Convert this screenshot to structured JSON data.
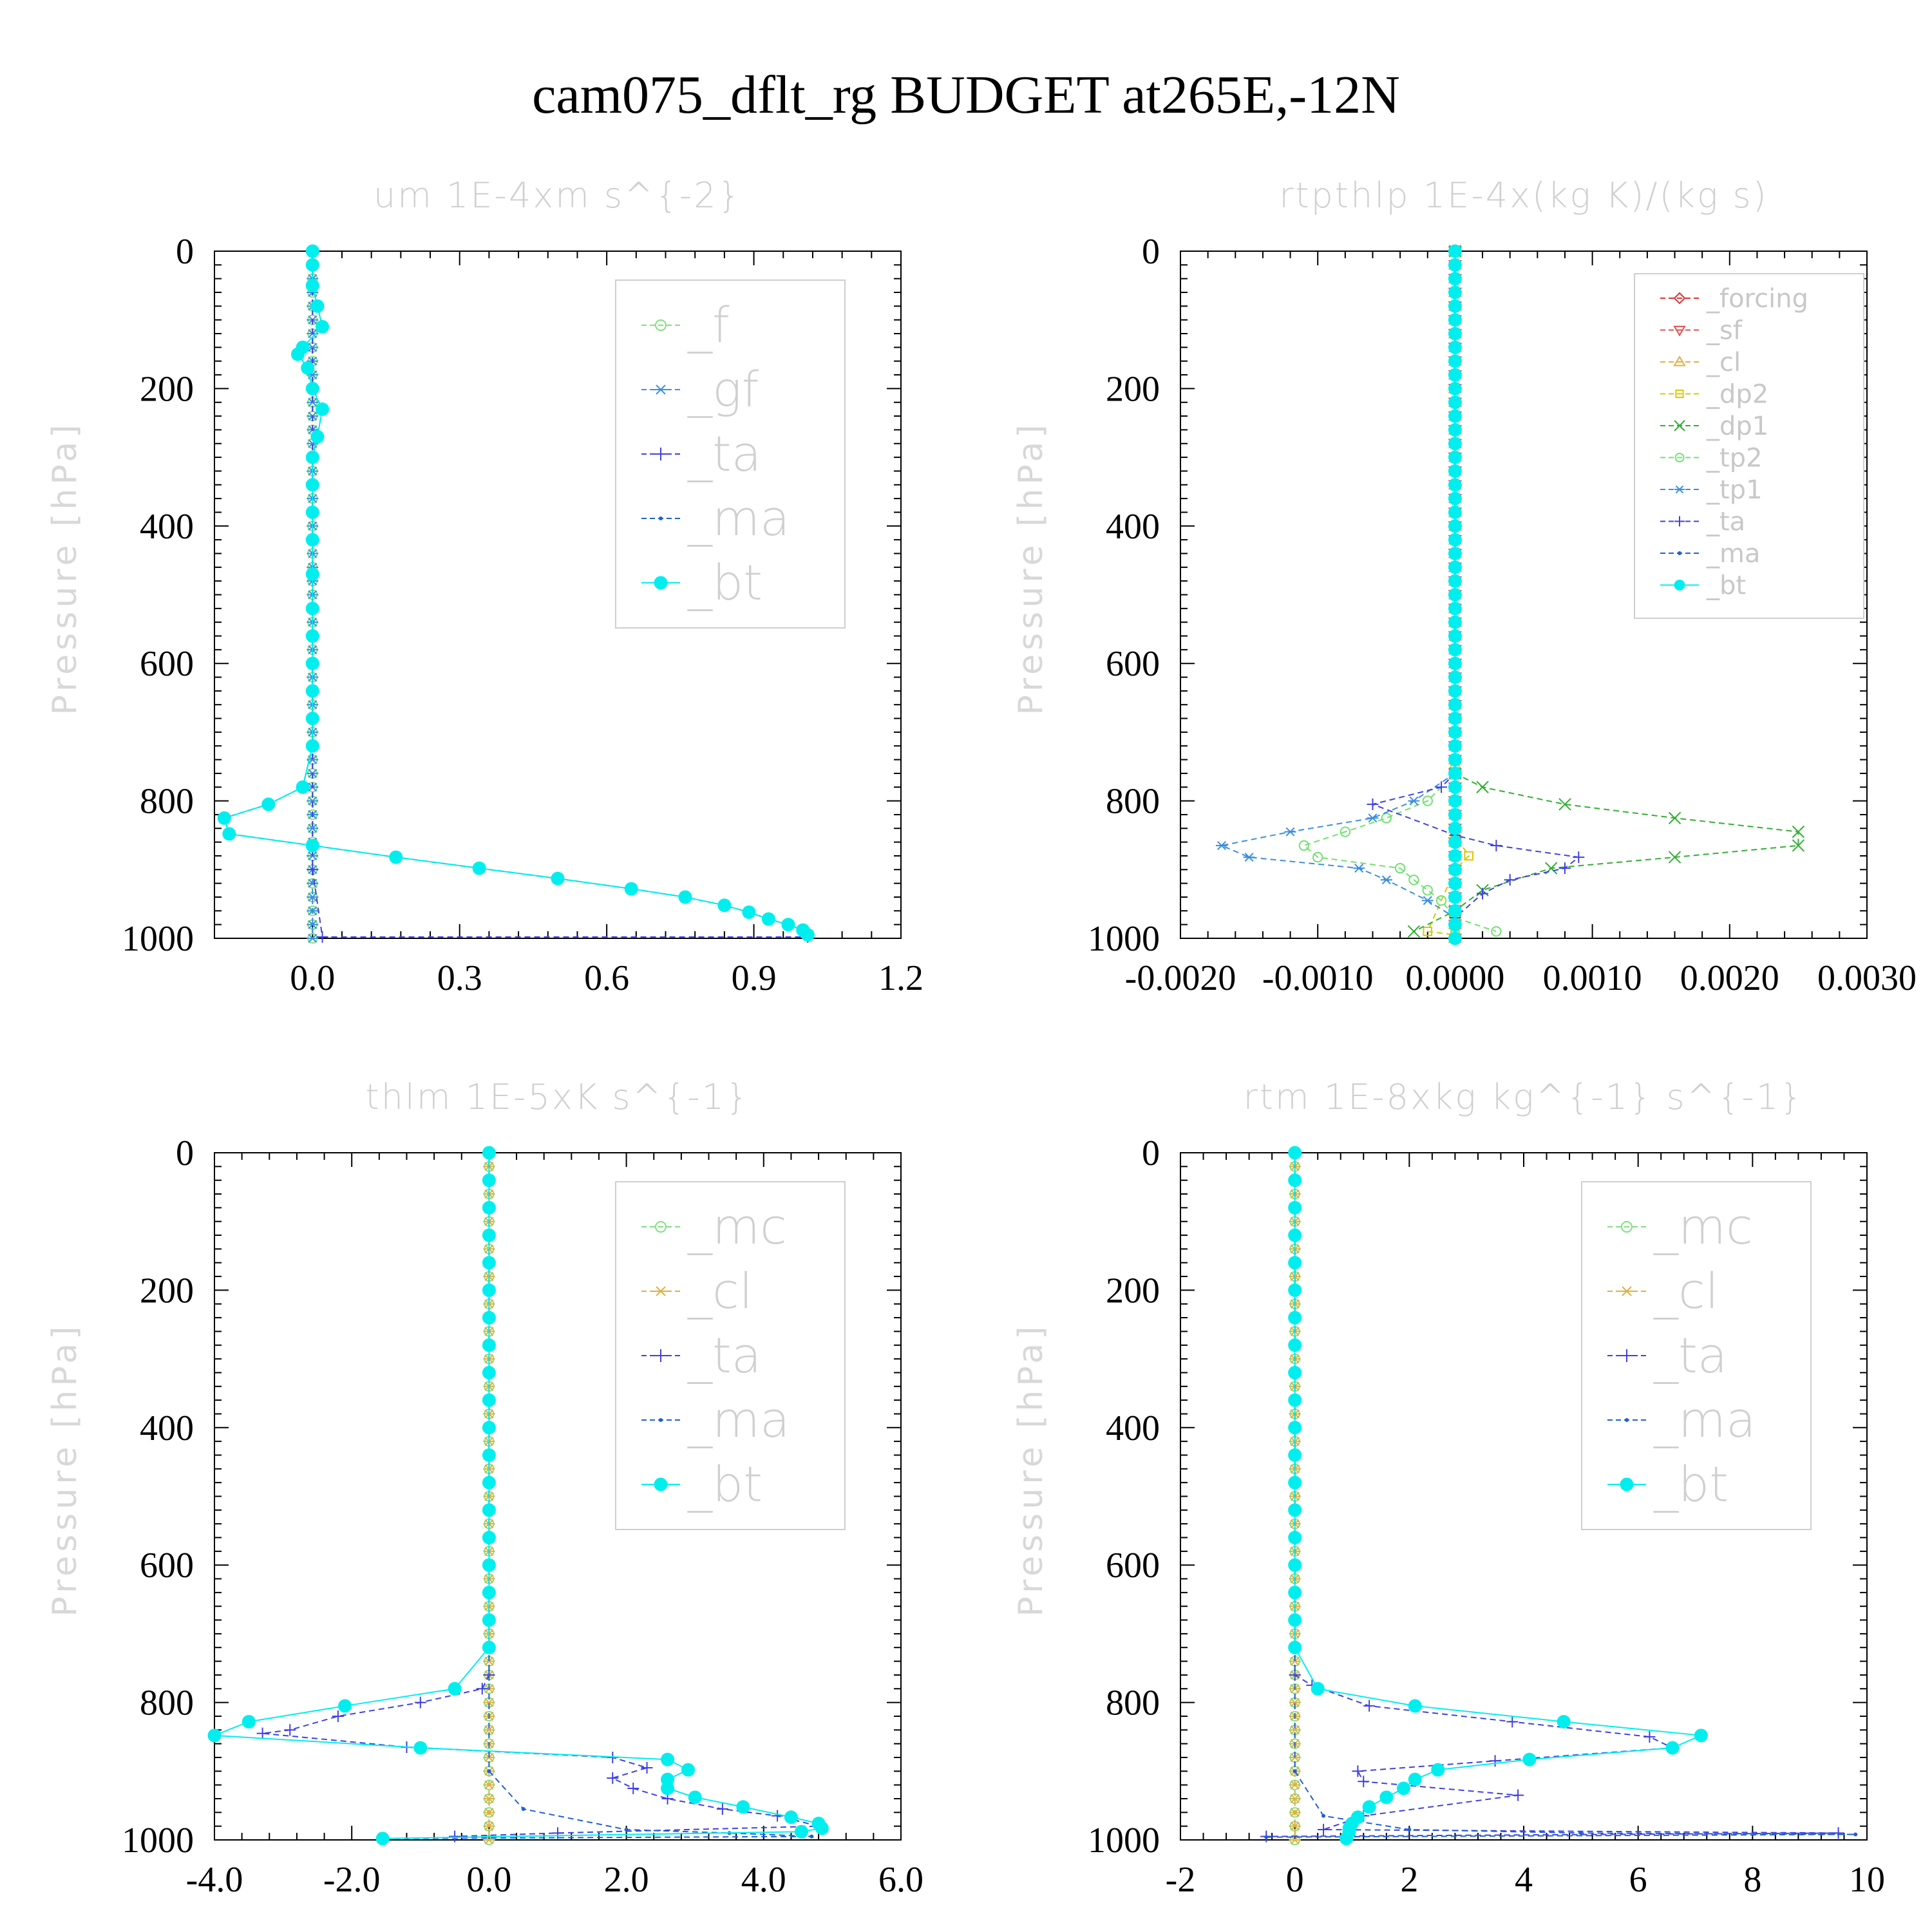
{
  "figure_title": "cam075_dflt_rg  BUDGET at265E,-12N",
  "y_axis_label": "Pressure [hPa]",
  "colors": {
    "_f": "#7fe07f",
    "_gf": "#3a8fe0",
    "_ta": "#4040e0",
    "_ma": "#2060d0",
    "_bt": "#00eeee",
    "_forcing": "#e03030",
    "_sf": "#e05050",
    "_cl": "#e0b040",
    "_dp2": "#d8c800",
    "_dp1": "#30b030",
    "_tp2": "#70e070",
    "_tp1": "#3a8fe0",
    "_mc": "#7fe07f"
  },
  "chart_data": [
    {
      "type": "line",
      "title": "um   1E-4xm s^{-2}",
      "ylabel": "Pressure [hPa]",
      "xlim": [
        -0.2,
        1.2
      ],
      "ylim": [
        1000,
        0
      ],
      "xticks": [
        "0.0",
        "0.3",
        "0.6",
        "0.9",
        "1.2"
      ],
      "xtick_values": [
        0,
        0.3,
        0.6,
        0.9,
        1.2
      ],
      "yticks": [
        "0",
        "200",
        "400",
        "600",
        "800",
        "1000"
      ],
      "legend_style": "large",
      "legend_position": "upper-right",
      "series": [
        {
          "name": "_f",
          "marker": "circle-open",
          "x": [
            0,
            0
          ],
          "y": [
            0,
            1000
          ]
        },
        {
          "name": "_gf",
          "marker": "asterisk",
          "x": [
            0,
            0
          ],
          "y": [
            0,
            1000
          ]
        },
        {
          "name": "_ta",
          "marker": "plus",
          "x": [
            0,
            0,
            0.02,
            1.01
          ],
          "y": [
            0,
            900,
            998,
            998
          ]
        },
        {
          "name": "_ma",
          "marker": "dot",
          "x": [
            0,
            0,
            0,
            0.01,
            0.02,
            -0.02,
            -0.03,
            -0.01,
            0,
            0.02,
            0.01,
            0,
            0,
            0,
            0,
            0,
            0,
            0,
            0,
            0,
            0,
            0,
            -0.02,
            -0.09,
            -0.18,
            -0.17,
            0,
            0.17,
            0.34,
            0.5,
            0.65,
            0.76,
            0.84,
            0.89,
            0.93,
            0.97,
            1.0,
            1.01
          ],
          "y": [
            0,
            20,
            50,
            80,
            110,
            140,
            150,
            170,
            200,
            230,
            270,
            300,
            340,
            380,
            420,
            470,
            520,
            560,
            600,
            640,
            680,
            720,
            780,
            805,
            825,
            848,
            865,
            882,
            898,
            913,
            928,
            940,
            952,
            962,
            972,
            980,
            988,
            995
          ]
        },
        {
          "name": "_bt",
          "marker": "dot-filled",
          "x": [
            0,
            0,
            0,
            0.01,
            0.02,
            -0.02,
            -0.03,
            -0.01,
            0,
            0.02,
            0.01,
            0,
            0,
            0,
            0,
            0,
            0,
            0,
            0,
            0,
            0,
            0,
            -0.02,
            -0.09,
            -0.18,
            -0.17,
            0,
            0.17,
            0.34,
            0.5,
            0.65,
            0.76,
            0.84,
            0.89,
            0.93,
            0.97,
            1.0,
            1.01
          ],
          "y": [
            0,
            20,
            50,
            80,
            110,
            140,
            150,
            170,
            200,
            230,
            270,
            300,
            340,
            380,
            420,
            470,
            520,
            560,
            600,
            640,
            680,
            720,
            780,
            805,
            825,
            848,
            865,
            882,
            898,
            913,
            928,
            940,
            952,
            962,
            972,
            980,
            988,
            995
          ]
        }
      ]
    },
    {
      "type": "line",
      "title": "rtpthlp   1E-4x(kg K)/(kg s)",
      "ylabel": "Pressure [hPa]",
      "xlim": [
        -0.002,
        0.003
      ],
      "ylim": [
        1000,
        0
      ],
      "xticks": [
        "-0.0020",
        "-0.0010",
        "0.0000",
        "0.0010",
        "0.0020",
        "0.0030"
      ],
      "xtick_values": [
        -0.002,
        -0.001,
        0,
        0.001,
        0.002,
        0.003
      ],
      "yticks": [
        "0",
        "200",
        "400",
        "600",
        "800",
        "1000"
      ],
      "legend_style": "small",
      "legend_position": "upper-right",
      "series": [
        {
          "name": "_forcing",
          "marker": "diamond",
          "x": [
            0,
            0
          ],
          "y": [
            0,
            1000
          ]
        },
        {
          "name": "_sf",
          "marker": "triangle-down",
          "x": [
            0,
            0
          ],
          "y": [
            0,
            1000
          ]
        },
        {
          "name": "_cl",
          "marker": "triangle-up",
          "x": [
            0,
            0
          ],
          "y": [
            0,
            1000
          ]
        },
        {
          "name": "_dp2",
          "marker": "square",
          "x": [
            0,
            0,
            0,
            0.0001,
            0,
            -0.0002,
            0
          ],
          "y": [
            0,
            750,
            850,
            880,
            900,
            990,
            995
          ]
        },
        {
          "name": "_dp1",
          "marker": "cross",
          "x": [
            0,
            0,
            0.0002,
            0.0008,
            0.0016,
            0.0025,
            0.0025,
            0.0016,
            0.0007,
            0.0002,
            0,
            -0.0003
          ],
          "y": [
            0,
            760,
            780,
            805,
            825,
            845,
            865,
            882,
            898,
            930,
            960,
            990
          ]
        },
        {
          "name": "_tp2",
          "marker": "circle-open",
          "x": [
            0,
            0,
            -0.0002,
            -0.0005,
            -0.0008,
            -0.0011,
            -0.001,
            -0.0004,
            -0.0003,
            -0.0002,
            -0.0001,
            0,
            0.0003
          ],
          "y": [
            0,
            760,
            800,
            825,
            845,
            865,
            882,
            898,
            915,
            930,
            945,
            970,
            990
          ]
        },
        {
          "name": "_tp1",
          "marker": "asterisk",
          "x": [
            0,
            0,
            -0.0003,
            -0.0006,
            -0.0012,
            -0.0017,
            -0.0015,
            -0.0007,
            -0.0005,
            -0.0002,
            0
          ],
          "y": [
            0,
            760,
            800,
            825,
            845,
            865,
            882,
            898,
            915,
            945,
            970
          ]
        },
        {
          "name": "_ta",
          "marker": "plus",
          "x": [
            0,
            0,
            -0.0001,
            -0.0006,
            0,
            0.0003,
            0.0009,
            0.0008,
            0.0004,
            0.0002,
            0
          ],
          "y": [
            0,
            760,
            780,
            805,
            850,
            865,
            882,
            898,
            915,
            935,
            970
          ]
        },
        {
          "name": "_ma",
          "marker": "dot",
          "x": [
            0,
            0
          ],
          "y": [
            0,
            1000
          ]
        },
        {
          "name": "_bt",
          "marker": "dot-filled",
          "x": [
            0,
            0
          ],
          "y": [
            0,
            1000
          ]
        }
      ]
    },
    {
      "type": "line",
      "title": "thlm   1E-5xK s^{-1}",
      "ylabel": "Pressure [hPa]",
      "xlim": [
        -4.0,
        6.0
      ],
      "ylim": [
        1000,
        0
      ],
      "xticks": [
        "-4.0",
        "-2.0",
        "0.0",
        "2.0",
        "4.0",
        "6.0"
      ],
      "xtick_values": [
        -4,
        -2,
        0,
        2,
        4,
        6
      ],
      "yticks": [
        "0",
        "200",
        "400",
        "600",
        "800",
        "1000"
      ],
      "legend_style": "large",
      "legend_position": "upper-right",
      "series": [
        {
          "name": "_mc",
          "marker": "circle-open",
          "x": [
            0,
            0
          ],
          "y": [
            0,
            1000
          ]
        },
        {
          "name": "_cl",
          "marker": "asterisk",
          "x": [
            0,
            0
          ],
          "y": [
            0,
            1000
          ]
        },
        {
          "name": "_ta",
          "marker": "plus",
          "x": [
            0,
            0,
            -0.1,
            -1.0,
            -2.2,
            -2.9,
            -3.3,
            -1.2,
            1.8,
            2.3,
            1.8,
            2.1,
            2.6,
            3.4,
            4.2,
            4.8,
            1.0,
            -0.5
          ],
          "y": [
            0,
            760,
            780,
            800,
            820,
            840,
            845,
            865,
            880,
            895,
            910,
            925,
            940,
            955,
            965,
            980,
            990,
            995
          ]
        },
        {
          "name": "_ma",
          "marker": "dot",
          "x": [
            0,
            0,
            0.5,
            2.0,
            3.5,
            4.7,
            -1.5
          ],
          "y": [
            0,
            900,
            955,
            985,
            990,
            995,
            998
          ]
        },
        {
          "name": "_bt",
          "marker": "dot-filled",
          "x": [
            0,
            0,
            0,
            0,
            0,
            0,
            0,
            0,
            0,
            0,
            0,
            0,
            0,
            0,
            0,
            0,
            0,
            0,
            0,
            -0.5,
            -2.1,
            -3.5,
            -4.0,
            -1.0,
            2.6,
            2.9,
            2.6,
            2.6,
            3.0,
            3.7,
            4.4,
            4.8,
            4.85,
            4.55,
            -1.55
          ],
          "y": [
            0,
            40,
            80,
            120,
            160,
            200,
            240,
            280,
            320,
            360,
            400,
            440,
            480,
            520,
            560,
            600,
            640,
            680,
            720,
            780,
            805,
            828,
            848,
            866,
            883,
            898,
            912,
            925,
            938,
            952,
            967,
            976,
            983,
            988,
            998
          ]
        }
      ]
    },
    {
      "type": "line",
      "title": "rtm   1E-8xkg kg^{-1} s^{-1}",
      "ylabel": "Pressure [hPa]",
      "xlim": [
        -2,
        10
      ],
      "ylim": [
        1000,
        0
      ],
      "xticks": [
        "-2",
        "0",
        "2",
        "4",
        "6",
        "8",
        "10"
      ],
      "xtick_values": [
        -2,
        0,
        2,
        4,
        6,
        8,
        10
      ],
      "yticks": [
        "0",
        "200",
        "400",
        "600",
        "800",
        "1000"
      ],
      "legend_style": "large",
      "legend_position": "upper-right",
      "series": [
        {
          "name": "_mc",
          "marker": "circle-open",
          "x": [
            0,
            0
          ],
          "y": [
            0,
            1000
          ]
        },
        {
          "name": "_cl",
          "marker": "asterisk",
          "x": [
            0,
            0
          ],
          "y": [
            0,
            1000
          ]
        },
        {
          "name": "_ta",
          "marker": "plus",
          "x": [
            0,
            0,
            0.3,
            1.3,
            3.8,
            6.2,
            6.6,
            3.5,
            1.1,
            1.2,
            3.9,
            1.2,
            0.5,
            9.5,
            -0.5
          ],
          "y": [
            0,
            760,
            775,
            805,
            828,
            850,
            866,
            885,
            900,
            915,
            935,
            965,
            985,
            990,
            995
          ]
        },
        {
          "name": "_ma",
          "marker": "dot",
          "x": [
            0,
            0,
            0.5,
            2,
            5,
            9.8,
            -0.5
          ],
          "y": [
            0,
            900,
            965,
            985,
            990,
            992,
            996
          ]
        },
        {
          "name": "_bt",
          "marker": "dot-filled",
          "x": [
            0,
            0,
            0,
            0,
            0,
            0,
            0,
            0,
            0,
            0,
            0,
            0,
            0,
            0,
            0,
            0,
            0,
            0,
            0,
            0.4,
            2.1,
            4.7,
            7.1,
            6.6,
            4.1,
            2.5,
            2.1,
            1.9,
            1.6,
            1.3,
            1.1,
            1.0,
            0.95,
            0.95,
            0.9
          ],
          "y": [
            0,
            40,
            80,
            120,
            160,
            200,
            240,
            280,
            320,
            360,
            400,
            440,
            480,
            520,
            560,
            600,
            640,
            680,
            720,
            780,
            805,
            828,
            848,
            866,
            883,
            898,
            912,
            925,
            938,
            952,
            967,
            976,
            983,
            988,
            998
          ]
        }
      ]
    }
  ]
}
